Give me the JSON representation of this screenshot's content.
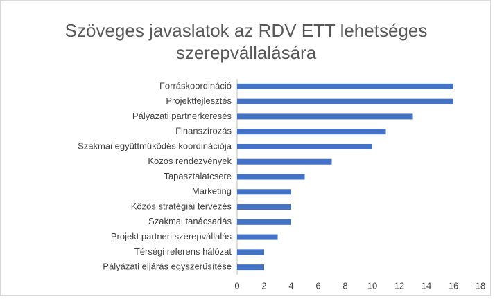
{
  "chart_data": {
    "type": "bar",
    "orientation": "horizontal",
    "title": "Szöveges javaslatok az RDV ETT lehetséges szerepvállalására",
    "categories": [
      "Forráskoordináció",
      "Projektfejlesztés",
      "Pályázati partnerkeresés",
      "Finanszírozás",
      "Szakmai együttműködés koordinációja",
      "Közös rendezvények",
      "Tapasztalatcsere",
      "Marketing",
      "Közös stratégiai tervezés",
      "Szakmai tanácsadás",
      "Projekt partneri szerepvállalás",
      "Térségi referens hálózat",
      "Pályázati eljárás egyszerűsítése"
    ],
    "values": [
      16,
      16,
      13,
      11,
      10,
      7,
      5,
      4,
      4,
      4,
      3,
      2,
      2
    ],
    "color": "#4472c4",
    "xlim": [
      0,
      18
    ],
    "xticks": [
      0,
      2,
      4,
      6,
      8,
      10,
      12,
      14,
      16,
      18
    ],
    "grid": false
  }
}
